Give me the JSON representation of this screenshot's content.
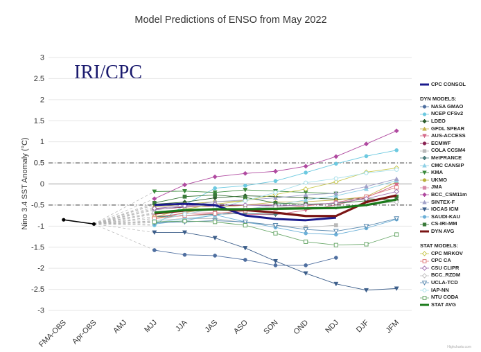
{
  "chart_data": {
    "type": "line",
    "title": "Model Predictions of ENSO from May 2022",
    "watermark": "IRI/CPC",
    "ylabel": "Nino 3.4 SST Anomaly (°C)",
    "xlabel": "",
    "ylim": [
      -3,
      3
    ],
    "yticks": [
      "-3",
      "-2.5",
      "-2",
      "-1.5",
      "-1",
      "-0.5",
      "0",
      "0.5",
      "1",
      "1.5",
      "2",
      "2.5",
      "3"
    ],
    "reference_lines": [
      0.5,
      -0.5
    ],
    "categories": [
      "FMA-OBS",
      "Apr-OBS",
      "AMJ",
      "MJJ",
      "JJA",
      "JAS",
      "ASO",
      "SON",
      "OND",
      "NDJ",
      "DJF",
      "JFM"
    ],
    "observed": {
      "x": [
        "FMA-OBS",
        "Apr-OBS"
      ],
      "values": [
        -0.85,
        -0.95
      ],
      "color": "#000000"
    },
    "legend_headers": {
      "dyn": "DYN MODELS:",
      "stat": "STAT MODELS:"
    },
    "credit": "Highcharts.com",
    "series": [
      {
        "name": "CPC CONSOL",
        "group": "consol",
        "color": "#1a1a8c",
        "marker": "line",
        "width": 3,
        "values": [
          null,
          null,
          null,
          -0.5,
          -0.47,
          -0.5,
          -0.75,
          -0.83,
          -0.86,
          -0.8,
          null,
          null
        ]
      },
      {
        "name": "NASA GMAO",
        "group": "dyn",
        "color": "#4f6fa0",
        "marker": "circle",
        "values": [
          null,
          null,
          null,
          -1.57,
          -1.68,
          -1.7,
          -1.8,
          -1.93,
          -1.93,
          -1.75,
          null,
          null
        ]
      },
      {
        "name": "NCEP CFSv2",
        "group": "dyn",
        "color": "#6cc9e0",
        "marker": "circle",
        "values": [
          null,
          null,
          null,
          -0.98,
          -0.5,
          -0.1,
          -0.04,
          0.07,
          0.27,
          0.48,
          0.66,
          0.8
        ]
      },
      {
        "name": "LDEO",
        "group": "dyn",
        "color": "#2e5e2e",
        "marker": "diamond",
        "values": [
          null,
          null,
          null,
          -0.48,
          -0.43,
          -0.33,
          -0.28,
          -0.3,
          -0.33,
          -0.36,
          -0.35,
          -0.38
        ]
      },
      {
        "name": "GFDL SPEAR",
        "group": "dyn",
        "color": "#c6b34a",
        "marker": "triangle",
        "values": [
          null,
          null,
          null,
          -0.82,
          -0.68,
          -0.57,
          -0.5,
          -0.43,
          -0.42,
          -0.38,
          -0.3,
          0.05
        ]
      },
      {
        "name": "AUS-ACCESS",
        "group": "dyn",
        "color": "#d46a8a",
        "marker": "triangle-down",
        "values": [
          null,
          null,
          null,
          -0.78,
          -0.7,
          -0.68,
          -0.72,
          -0.73,
          -0.62,
          -0.5,
          -0.32,
          -0.02
        ]
      },
      {
        "name": "ECMWF",
        "group": "dyn",
        "color": "#8a2252",
        "marker": "circle",
        "values": [
          null,
          null,
          null,
          -0.6,
          -0.55,
          -0.52,
          -0.5,
          -0.5,
          null,
          null,
          null,
          null
        ]
      },
      {
        "name": "COLA CCSM4",
        "group": "dyn",
        "color": "#b9b9b9",
        "marker": "square",
        "values": [
          null,
          null,
          null,
          -0.87,
          -0.82,
          -0.82,
          -0.92,
          -0.98,
          -1.03,
          -0.98,
          null,
          null
        ]
      },
      {
        "name": "MetFRANCE",
        "group": "dyn",
        "color": "#4f7f7f",
        "marker": "diamond",
        "values": [
          null,
          null,
          null,
          -0.78,
          -0.75,
          -0.72,
          -0.7,
          -0.72,
          null,
          null,
          null,
          null
        ]
      },
      {
        "name": "CMC CANSIP",
        "group": "dyn",
        "color": "#8fd0e6",
        "marker": "triangle",
        "values": [
          null,
          null,
          null,
          -0.92,
          -0.82,
          -0.75,
          -0.6,
          -0.5,
          -0.38,
          -0.28,
          -0.12,
          0.08
        ]
      },
      {
        "name": "KMA",
        "group": "dyn",
        "color": "#3a8a3a",
        "marker": "triangle-down",
        "values": [
          null,
          null,
          null,
          -0.18,
          -0.17,
          -0.2,
          -0.14,
          -0.17,
          -0.2,
          -0.23,
          null,
          null
        ]
      },
      {
        "name": "UKMO",
        "group": "dyn",
        "color": "#b8b03a",
        "marker": "circle",
        "values": [
          null,
          null,
          null,
          -0.55,
          -0.48,
          -0.42,
          -0.4,
          null,
          null,
          null,
          null,
          null
        ]
      },
      {
        "name": "JMA",
        "group": "dyn",
        "color": "#d68aa8",
        "marker": "square",
        "values": [
          null,
          null,
          null,
          -0.72,
          -0.65,
          -0.62,
          -0.6,
          -0.58,
          null,
          null,
          null,
          null
        ]
      },
      {
        "name": "BCC_CSM11m",
        "group": "dyn",
        "color": "#b04aa0",
        "marker": "diamond",
        "values": [
          null,
          null,
          null,
          -0.35,
          -0.02,
          0.17,
          0.25,
          0.3,
          0.42,
          0.65,
          0.95,
          1.26
        ]
      },
      {
        "name": "SINTEX-F",
        "group": "dyn",
        "color": "#a0a0c8",
        "marker": "triangle",
        "values": [
          null,
          null,
          null,
          -0.62,
          -0.52,
          -0.42,
          -0.38,
          -0.33,
          -0.26,
          -0.22,
          -0.06,
          0.12
        ]
      },
      {
        "name": "IOCAS ICM",
        "group": "dyn",
        "color": "#3c5e8a",
        "marker": "triangle-down",
        "values": [
          null,
          null,
          null,
          -1.15,
          -1.15,
          -1.28,
          -1.52,
          -1.83,
          -2.12,
          -2.37,
          -2.52,
          -2.48
        ]
      },
      {
        "name": "SAUDI-KAU",
        "group": "dyn",
        "color": "#6cb0d8",
        "marker": "circle",
        "values": [
          null,
          null,
          null,
          -0.95,
          -0.87,
          -0.73,
          -0.9,
          -1.03,
          -1.17,
          -1.2,
          -1.05,
          -0.84
        ]
      },
      {
        "name": "CS-IRI-MM",
        "group": "dyn",
        "color": "#3a7a3a",
        "marker": "square",
        "values": [
          null,
          null,
          null,
          -0.45,
          -0.3,
          -0.26,
          -0.32,
          -0.45,
          -0.48,
          -0.46,
          -0.4,
          -0.3
        ]
      },
      {
        "name": "DYN AVG",
        "group": "dyn_avg",
        "color": "#7a1414",
        "marker": "line",
        "width": 3.2,
        "values": [
          null,
          null,
          null,
          -0.7,
          -0.63,
          -0.6,
          -0.62,
          -0.68,
          -0.76,
          -0.76,
          -0.43,
          -0.27
        ]
      },
      {
        "name": "CPC MRKOV",
        "group": "stat",
        "color": "#c8c850",
        "marker": "diamond-open",
        "values": [
          null,
          null,
          null,
          -0.78,
          -0.6,
          -0.48,
          -0.4,
          -0.25,
          -0.12,
          0.05,
          0.28,
          0.38
        ]
      },
      {
        "name": "CPC CA",
        "group": "stat",
        "color": "#e07a7a",
        "marker": "square-open",
        "values": [
          null,
          null,
          null,
          -0.82,
          -0.75,
          -0.7,
          -0.64,
          -0.58,
          -0.52,
          -0.44,
          -0.3,
          -0.08
        ]
      },
      {
        "name": "CSU CLIPR",
        "group": "stat",
        "color": "#a070b0",
        "marker": "diamond-open",
        "values": [
          null,
          null,
          null,
          -0.58,
          -0.52,
          -0.48,
          -0.5,
          -0.52,
          -0.5,
          -0.45,
          -0.35,
          -0.18
        ]
      },
      {
        "name": "BCC_RZDM",
        "group": "stat",
        "color": "#c0c0c0",
        "marker": "diamond-open",
        "values": [
          null,
          null,
          null,
          -0.68,
          -0.66,
          -0.6,
          -0.58,
          -0.55,
          -0.55,
          -0.55,
          -0.48,
          -0.43
        ]
      },
      {
        "name": "UCLA-TCD",
        "group": "stat",
        "color": "#5a8ab0",
        "marker": "triangle-down-open",
        "values": [
          null,
          null,
          null,
          -0.92,
          -0.9,
          -0.87,
          -0.9,
          -0.98,
          -1.08,
          -1.12,
          -1.0,
          -0.82
        ]
      },
      {
        "name": "IAP-NN",
        "group": "stat",
        "color": "#a8e0ea",
        "marker": "circle-open",
        "values": [
          null,
          null,
          null,
          -0.88,
          -0.72,
          -0.58,
          -0.4,
          -0.2,
          0.03,
          0.13,
          0.26,
          0.34
        ]
      },
      {
        "name": "NTU CODA",
        "group": "stat",
        "color": "#6aa86a",
        "marker": "square-open",
        "values": [
          null,
          null,
          null,
          -0.9,
          -0.88,
          -0.9,
          -0.98,
          -1.17,
          -1.37,
          -1.45,
          -1.43,
          -1.2
        ]
      },
      {
        "name": "STAT AVG",
        "group": "stat_avg",
        "color": "#1a7a1a",
        "marker": "line",
        "width": 3.2,
        "values": [
          null,
          null,
          null,
          -0.68,
          -0.62,
          -0.6,
          -0.6,
          -0.59,
          -0.58,
          -0.57,
          -0.5,
          -0.37
        ]
      }
    ]
  }
}
